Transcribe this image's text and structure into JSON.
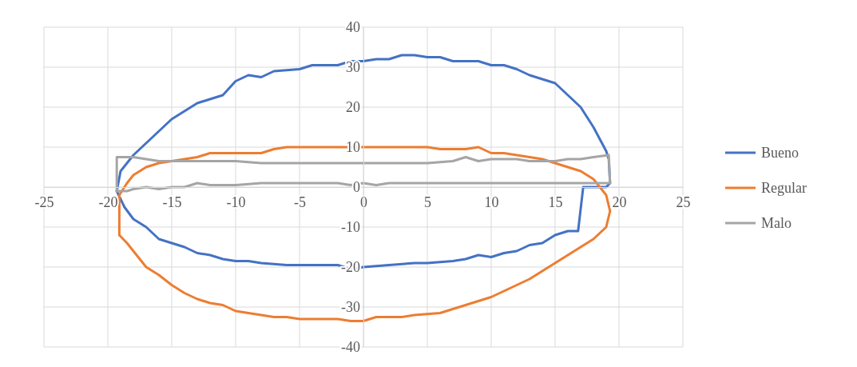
{
  "chart_data": {
    "type": "line",
    "xlim": [
      -25,
      25
    ],
    "ylim": [
      -40,
      40
    ],
    "xticks": [
      -25,
      -20,
      -15,
      -10,
      -5,
      0,
      5,
      10,
      15,
      20,
      25
    ],
    "yticks": [
      -40,
      -30,
      -20,
      -10,
      0,
      10,
      20,
      30,
      40
    ],
    "grid": true,
    "legend": "right",
    "marker": "none",
    "line_style": "solid",
    "series": [
      {
        "name": "Bueno",
        "color": "#4472c4",
        "x": [
          -19.3,
          -19,
          -18,
          -17,
          -16,
          -15,
          -14,
          -13,
          -12,
          -11,
          -10,
          -9,
          -8,
          -7,
          -5,
          -4,
          -2,
          -1,
          0,
          1,
          2,
          3,
          4,
          5,
          6,
          7,
          8,
          9,
          10,
          11,
          12,
          13,
          14,
          15,
          16,
          17,
          18,
          18.5,
          19,
          19.2,
          19.3
        ],
        "values": [
          -1,
          4,
          8,
          11,
          14,
          17,
          19,
          21,
          22,
          23,
          26.5,
          28,
          27.5,
          29,
          29.5,
          30.5,
          30.5,
          31.5,
          31.5,
          32,
          32,
          33,
          33,
          32.5,
          32.5,
          31.5,
          31.5,
          31.5,
          30.5,
          30.5,
          29.5,
          28,
          27,
          26,
          23,
          20,
          15,
          12,
          9,
          7,
          1
        ]
      },
      {
        "color": "#4472c4",
        "x": [
          -19.3,
          -18.7,
          -18,
          -17,
          -16,
          -15,
          -14,
          -13,
          -12,
          -11,
          -10,
          -9,
          -8,
          -6,
          -4,
          -2,
          -1,
          0,
          2,
          4,
          5,
          7,
          8,
          9,
          10,
          11,
          12,
          13,
          14,
          15,
          16,
          16.8,
          17.2,
          19,
          19.3
        ],
        "values": [
          -1,
          -5,
          -8,
          -10,
          -13,
          -14,
          -15,
          -16.5,
          -17,
          -18,
          -18.5,
          -18.5,
          -19,
          -19.5,
          -19.5,
          -19.5,
          -20.5,
          -20,
          -19.5,
          -19,
          -19,
          -18.5,
          -18,
          -17,
          -17.5,
          -16.5,
          -16,
          -14.5,
          -14,
          -12,
          -11,
          -11,
          0,
          0,
          1
        ]
      },
      {
        "name": "Regular",
        "color": "#ed7d31",
        "x": [
          -19.1,
          -18.5,
          -18,
          -17,
          -16,
          -15,
          -14,
          -13,
          -12,
          -10,
          -8,
          -7,
          -6,
          0,
          5,
          6,
          8,
          9,
          10,
          11,
          12,
          13,
          14,
          15,
          16,
          17,
          18,
          19,
          19.3
        ],
        "values": [
          -2,
          1,
          3,
          5,
          6,
          6.5,
          7,
          7.5,
          8.5,
          8.5,
          8.5,
          9.5,
          10,
          10,
          10,
          9.5,
          9.5,
          10,
          8.5,
          8.5,
          8,
          7.5,
          7,
          6,
          5,
          4,
          2,
          -2,
          -6
        ]
      },
      {
        "color": "#ed7d31",
        "x": [
          -19.1,
          -19.1
        ],
        "values": [
          -2,
          -12
        ]
      },
      {
        "color": "#ed7d31",
        "x": [
          -19.1,
          -18.5,
          -18,
          -17,
          -16,
          -15,
          -14,
          -13,
          -12,
          -11,
          -10,
          -9,
          -8,
          -7,
          -6,
          -5,
          -3,
          -2,
          -1,
          0,
          1,
          3,
          4,
          6,
          7,
          8,
          9,
          10,
          11,
          12,
          13,
          14,
          15,
          16,
          17,
          18,
          19,
          19.3
        ],
        "values": [
          -12,
          -14,
          -16,
          -20,
          -22,
          -24.5,
          -26.5,
          -28,
          -29,
          -29.5,
          -31,
          -31.5,
          -32,
          -32.5,
          -32.5,
          -33,
          -33,
          -33,
          -33.5,
          -33.5,
          -32.5,
          -32.5,
          -32,
          -31.5,
          -30.5,
          -29.5,
          -28.5,
          -27.5,
          -26,
          -24.5,
          -23,
          -21,
          -19,
          -17,
          -15,
          -13,
          -10,
          -6
        ]
      },
      {
        "name": "Malo",
        "color": "#a5a5a5",
        "x": [
          -19.3,
          -19.3,
          -18,
          -17,
          -16,
          -14,
          -12,
          -10,
          -8,
          -5,
          0,
          5,
          7,
          8,
          9,
          10,
          12,
          13,
          15,
          16,
          17,
          18,
          19.2,
          19.3
        ],
        "values": [
          -1,
          7.5,
          7.5,
          7,
          6.5,
          6.5,
          6.5,
          6.5,
          6,
          6,
          6,
          6,
          6.5,
          7.5,
          6.5,
          7,
          7,
          6.5,
          6.5,
          7,
          7,
          7.5,
          8,
          1
        ]
      },
      {
        "color": "#a5a5a5",
        "x": [
          -19.3,
          -18.5,
          -18,
          -17,
          -16,
          -15,
          -14,
          -13,
          -12,
          -10,
          -8,
          -5,
          -2,
          -1,
          0,
          1,
          2,
          10,
          19.3
        ],
        "values": [
          -1,
          -1,
          -0.5,
          0,
          -0.5,
          0,
          0,
          1,
          0.5,
          0.5,
          1,
          1,
          1,
          0.5,
          1,
          0.5,
          1,
          1,
          1
        ]
      }
    ]
  }
}
